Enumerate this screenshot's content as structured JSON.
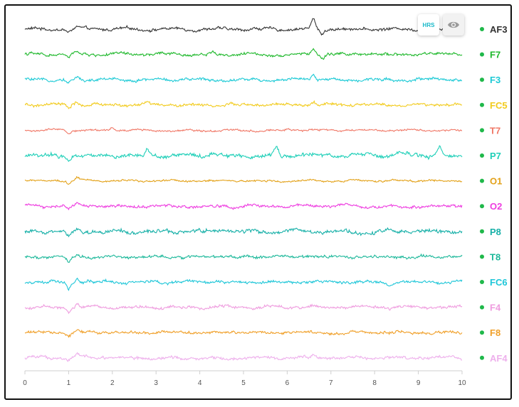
{
  "controls": {
    "hrs_label": "HRS",
    "eye_icon": "eye-icon"
  },
  "chart_data": {
    "type": "line",
    "title": "",
    "xlabel": "",
    "ylabel": "",
    "xlim": [
      0,
      10
    ],
    "x_ticks": [
      0,
      1,
      2,
      3,
      4,
      5,
      6,
      7,
      8,
      9,
      10
    ],
    "legend_placement": "right",
    "indicator_color": "#1fb84a",
    "series": [
      {
        "name": "AF3",
        "color": "#333333",
        "amplitude": 3,
        "events": [
          {
            "x": 1.0,
            "value": -5
          },
          {
            "x": 1.2,
            "value": 3
          },
          {
            "x": 6.6,
            "value": 14
          },
          {
            "x": 6.8,
            "value": -6
          },
          {
            "x": 9.1,
            "value": -3
          }
        ]
      },
      {
        "name": "F7",
        "color": "#1fb82c",
        "amplitude": 3,
        "events": [
          {
            "x": 1.0,
            "value": -6
          },
          {
            "x": 1.2,
            "value": 4
          },
          {
            "x": 4.3,
            "value": 3
          },
          {
            "x": 6.6,
            "value": 9
          },
          {
            "x": 6.8,
            "value": -5
          }
        ]
      },
      {
        "name": "F3",
        "color": "#1ecad6",
        "amplitude": 3,
        "events": [
          {
            "x": 1.0,
            "value": -5
          },
          {
            "x": 1.2,
            "value": 4
          },
          {
            "x": 6.6,
            "value": 7
          },
          {
            "x": 9.0,
            "value": 2
          }
        ]
      },
      {
        "name": "FC5",
        "color": "#f2cb1d",
        "amplitude": 3,
        "events": [
          {
            "x": 1.0,
            "value": -6
          },
          {
            "x": 1.2,
            "value": 4
          },
          {
            "x": 2.8,
            "value": 3
          },
          {
            "x": 6.6,
            "value": 5
          }
        ]
      },
      {
        "name": "T7",
        "color": "#f07867",
        "amplitude": 2,
        "events": [
          {
            "x": 1.0,
            "value": -4
          },
          {
            "x": 2.0,
            "value": 3
          },
          {
            "x": 6.0,
            "value": 2
          }
        ]
      },
      {
        "name": "P7",
        "color": "#1fcfb8",
        "amplitude": 4,
        "events": [
          {
            "x": 1.0,
            "value": -5
          },
          {
            "x": 2.8,
            "value": 11
          },
          {
            "x": 4.3,
            "value": 5
          },
          {
            "x": 5.75,
            "value": 10
          },
          {
            "x": 9.5,
            "value": 11
          }
        ]
      },
      {
        "name": "O1",
        "color": "#e3a21a",
        "amplitude": 2,
        "events": [
          {
            "x": 1.0,
            "value": -5
          },
          {
            "x": 1.2,
            "value": 4
          }
        ]
      },
      {
        "name": "O2",
        "color": "#ee3de0",
        "amplitude": 3,
        "events": [
          {
            "x": 1.0,
            "value": -6
          },
          {
            "x": 1.2,
            "value": 4
          }
        ]
      },
      {
        "name": "P8",
        "color": "#17b0a8",
        "amplitude": 4,
        "events": [
          {
            "x": 1.0,
            "value": -7
          },
          {
            "x": 1.2,
            "value": 5
          }
        ]
      },
      {
        "name": "T8",
        "color": "#1cb89a",
        "amplitude": 3,
        "events": [
          {
            "x": 1.0,
            "value": -6
          },
          {
            "x": 1.2,
            "value": 5
          }
        ]
      },
      {
        "name": "FC6",
        "color": "#1ec6d8",
        "amplitude": 3,
        "events": [
          {
            "x": 1.0,
            "value": -8
          },
          {
            "x": 1.2,
            "value": 6
          }
        ]
      },
      {
        "name": "F4",
        "color": "#ef9ddf",
        "amplitude": 3,
        "events": [
          {
            "x": 1.0,
            "value": -7
          },
          {
            "x": 1.2,
            "value": 5
          }
        ]
      },
      {
        "name": "F8",
        "color": "#f0a02a",
        "amplitude": 3,
        "events": [
          {
            "x": 1.0,
            "value": -6
          },
          {
            "x": 1.2,
            "value": 4
          }
        ]
      },
      {
        "name": "AF4",
        "color": "#eeb0ec",
        "amplitude": 3,
        "events": [
          {
            "x": 1.0,
            "value": -5
          },
          {
            "x": 1.2,
            "value": 4
          },
          {
            "x": 6.6,
            "value": 3
          }
        ]
      }
    ]
  }
}
